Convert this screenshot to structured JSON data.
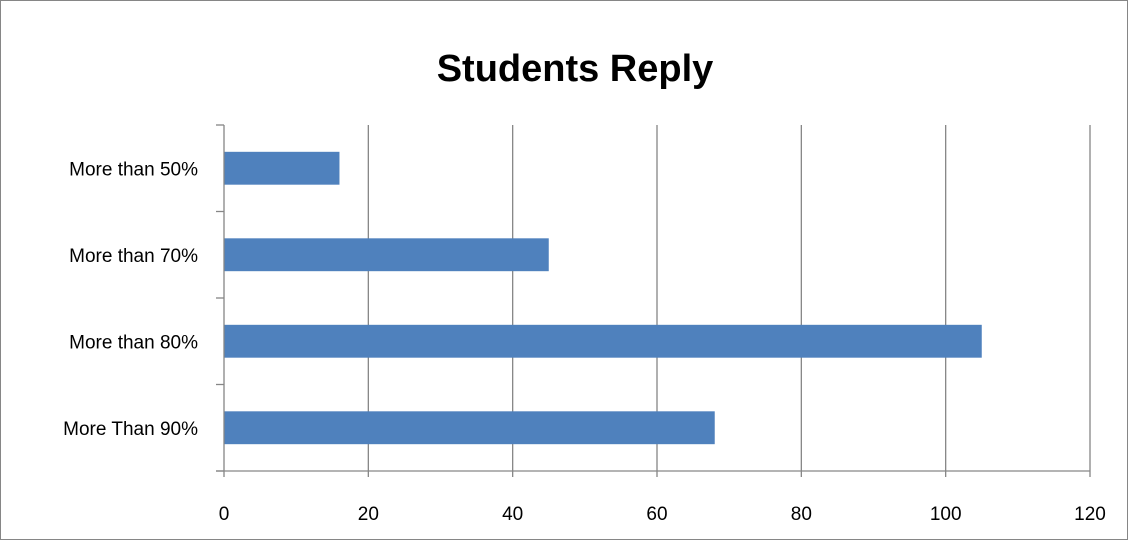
{
  "chart_data": {
    "type": "bar",
    "orientation": "horizontal",
    "title": "Students Reply",
    "categories": [
      "More than 50%",
      "More than 70%",
      "More than 80%",
      "More Than 90%"
    ],
    "values": [
      16,
      45,
      105,
      68
    ],
    "xlim": [
      0,
      120
    ],
    "x_ticks": [
      0,
      20,
      40,
      60,
      80,
      100,
      120
    ],
    "grid": "vertical",
    "legend": "none",
    "bar_color": "#4F81BD",
    "grid_color": "#868686"
  }
}
